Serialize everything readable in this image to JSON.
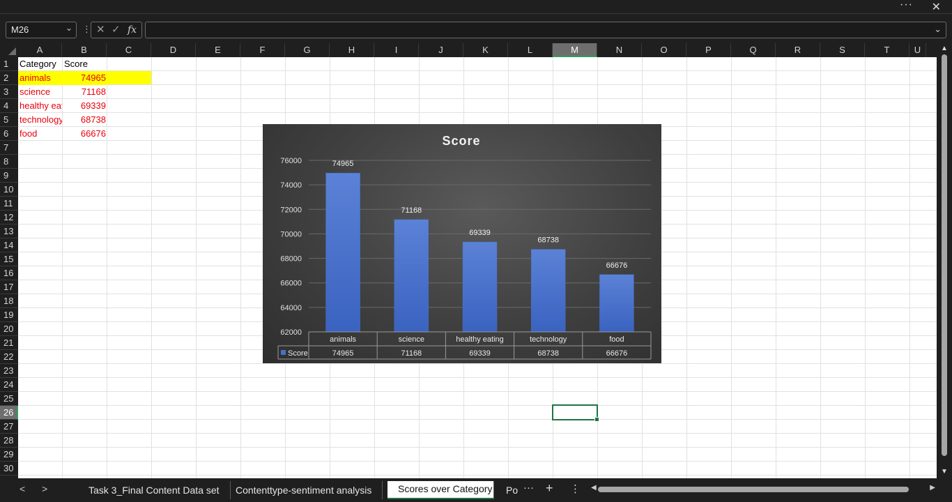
{
  "window": {
    "more_label": "···",
    "close_label": "✕"
  },
  "formula_bar": {
    "name_box": "M26",
    "cancel_glyph": "✕",
    "enter_glyph": "✓",
    "fx_label": "fx",
    "formula_value": ""
  },
  "grid": {
    "columns": [
      "A",
      "B",
      "C",
      "D",
      "E",
      "F",
      "G",
      "H",
      "I",
      "J",
      "K",
      "L",
      "M",
      "N",
      "O",
      "P",
      "Q",
      "R",
      "S",
      "T",
      "U"
    ],
    "rows": [
      "1",
      "2",
      "3",
      "4",
      "5",
      "6",
      "7",
      "8",
      "9",
      "10",
      "11",
      "12",
      "13",
      "14",
      "15",
      "16",
      "17",
      "18",
      "19",
      "20",
      "21",
      "22",
      "23",
      "24",
      "25",
      "26",
      "27",
      "28",
      "29",
      "30"
    ],
    "selected_column": "M",
    "selected_row": "26",
    "selected_cell": "M26"
  },
  "cells": {
    "A1": "Category",
    "B1": "Score",
    "A2": "animals",
    "B2": "74965",
    "A3": "science",
    "B3": "71168",
    "A4": "healthy eating",
    "B4": "69339",
    "A5": "technology",
    "B5": "68738",
    "A6": "food",
    "B6": "66676"
  },
  "colors": {
    "chart_bar": "#4472c4",
    "highlight": "#ffff00",
    "data_text": "#e8000b",
    "selection": "#217346"
  },
  "chart_data": {
    "type": "bar",
    "title": "Score",
    "categories": [
      "animals",
      "science",
      "healthy eating",
      "technology",
      "food"
    ],
    "series": [
      {
        "name": "Score",
        "values": [
          74965,
          71168,
          69339,
          68738,
          66676
        ]
      }
    ],
    "ylim": [
      62000,
      76000
    ],
    "yticks": [
      62000,
      64000,
      66000,
      68000,
      70000,
      72000,
      74000,
      76000
    ],
    "data_labels": true,
    "data_table": true,
    "grid": true,
    "legend": "in data table"
  },
  "sheet_tabs": {
    "prev_glyph": "<",
    "next_glyph": ">",
    "tabs": [
      {
        "label": "Task 3_Final Content Data set",
        "active": false
      },
      {
        "label": "Contenttype-sentiment analysis",
        "active": false
      },
      {
        "label": "Scores over Category",
        "active": true
      },
      {
        "label": "Po",
        "active": false
      }
    ],
    "more_glyph": "···",
    "add_glyph": "+",
    "options_glyph": "⋮"
  }
}
